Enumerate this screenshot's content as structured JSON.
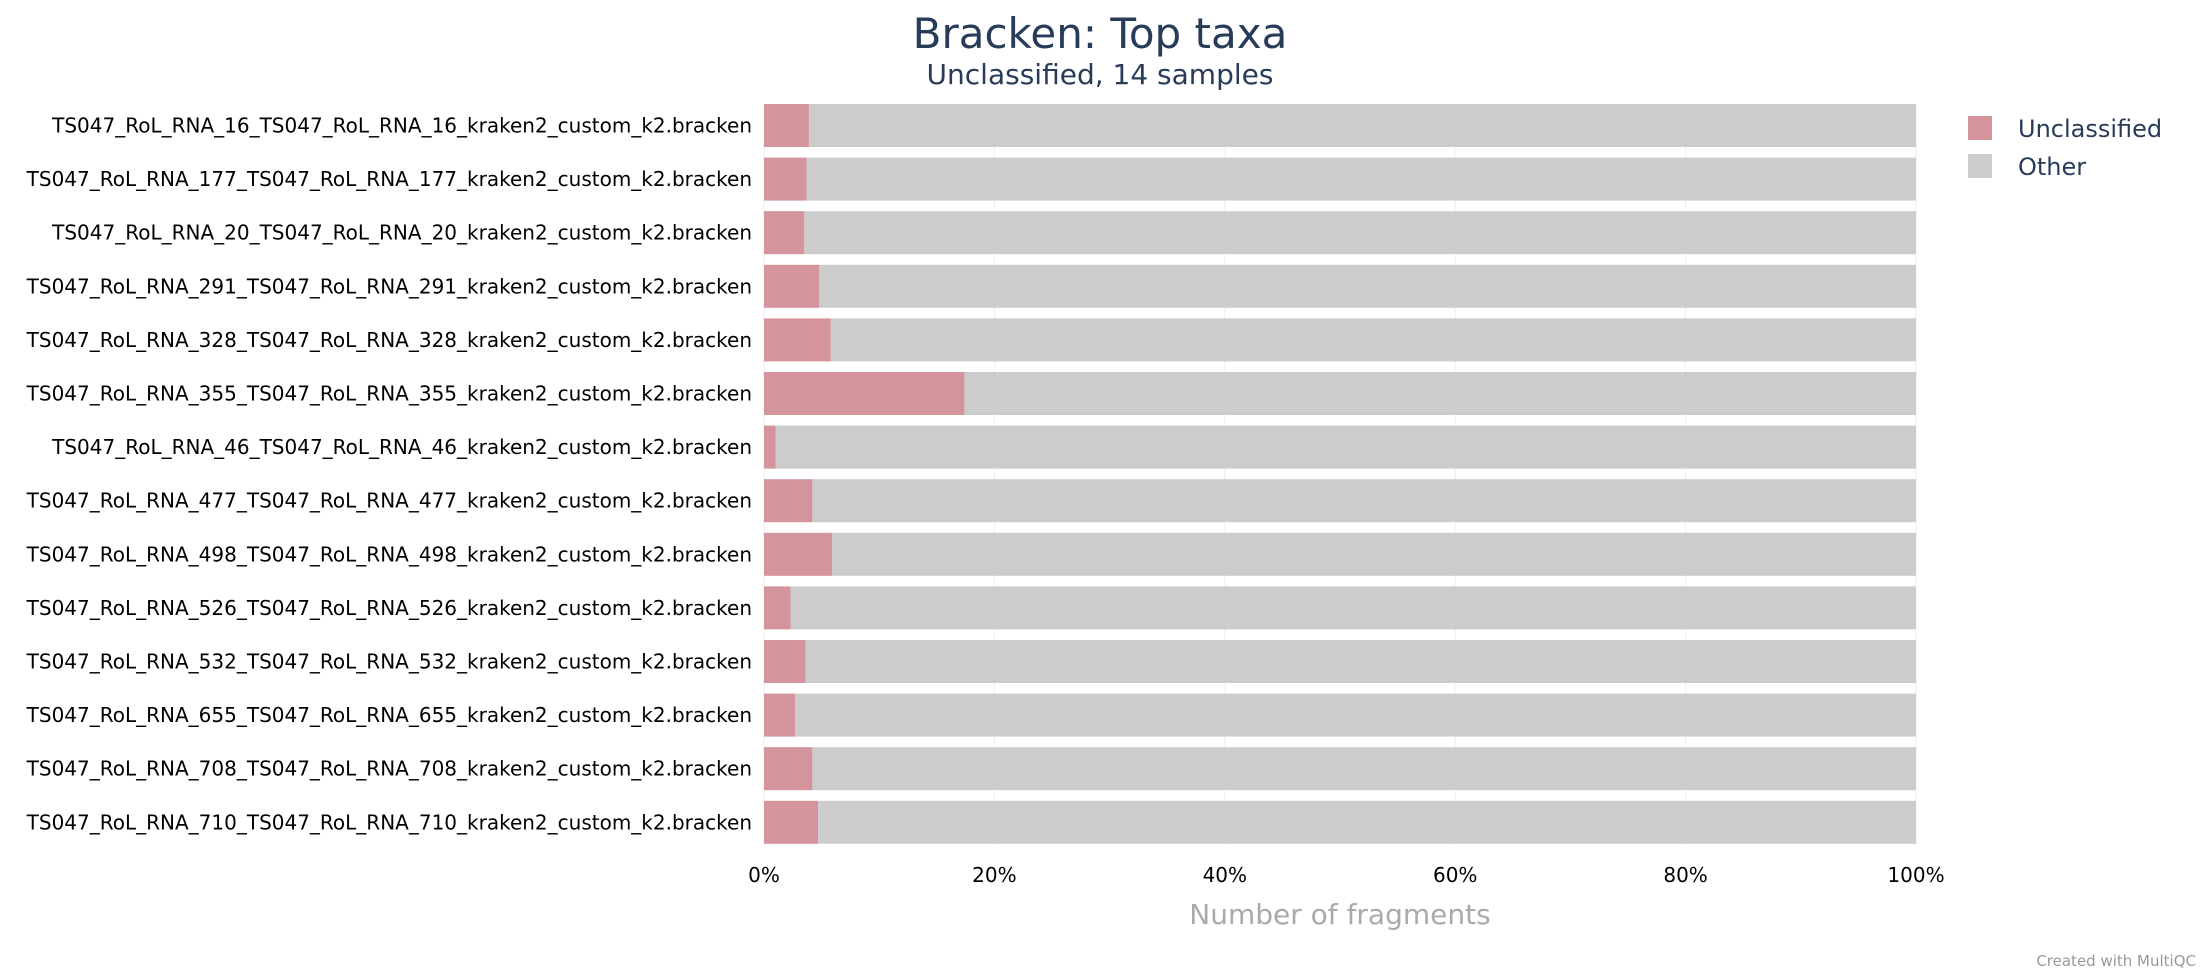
{
  "chart_data": {
    "type": "bar",
    "orientation": "horizontal",
    "stacked": true,
    "title": "Bracken: Top taxa",
    "subtitle": "Unclassified, 14 samples",
    "xlabel": "Number of fragments",
    "ylabel": "",
    "xlim": [
      0,
      100
    ],
    "x_ticks": [
      "0%",
      "20%",
      "40%",
      "60%",
      "80%",
      "100%"
    ],
    "grid": true,
    "legend_position": "top-right",
    "categories": [
      "TS047_RoL_RNA_16_TS047_RoL_RNA_16_kraken2_custom_k2.bracken",
      "TS047_RoL_RNA_177_TS047_RoL_RNA_177_kraken2_custom_k2.bracken",
      "TS047_RoL_RNA_20_TS047_RoL_RNA_20_kraken2_custom_k2.bracken",
      "TS047_RoL_RNA_291_TS047_RoL_RNA_291_kraken2_custom_k2.bracken",
      "TS047_RoL_RNA_328_TS047_RoL_RNA_328_kraken2_custom_k2.bracken",
      "TS047_RoL_RNA_355_TS047_RoL_RNA_355_kraken2_custom_k2.bracken",
      "TS047_RoL_RNA_46_TS047_RoL_RNA_46_kraken2_custom_k2.bracken",
      "TS047_RoL_RNA_477_TS047_RoL_RNA_477_kraken2_custom_k2.bracken",
      "TS047_RoL_RNA_498_TS047_RoL_RNA_498_kraken2_custom_k2.bracken",
      "TS047_RoL_RNA_526_TS047_RoL_RNA_526_kraken2_custom_k2.bracken",
      "TS047_RoL_RNA_532_TS047_RoL_RNA_532_kraken2_custom_k2.bracken",
      "TS047_RoL_RNA_655_TS047_RoL_RNA_655_kraken2_custom_k2.bracken",
      "TS047_RoL_RNA_708_TS047_RoL_RNA_708_kraken2_custom_k2.bracken",
      "TS047_RoL_RNA_710_TS047_RoL_RNA_710_kraken2_custom_k2.bracken"
    ],
    "series": [
      {
        "name": "Unclassified",
        "color": "#d4949b",
        "values": [
          3.9,
          3.7,
          3.5,
          4.8,
          5.8,
          17.4,
          1.0,
          4.2,
          5.9,
          2.3,
          3.6,
          2.7,
          4.2,
          4.7
        ]
      },
      {
        "name": "Other",
        "color": "#cccccc",
        "values": [
          96.1,
          96.3,
          96.5,
          95.2,
          94.2,
          82.6,
          99.0,
          95.8,
          94.1,
          97.7,
          96.4,
          97.3,
          95.8,
          95.3
        ]
      }
    ]
  },
  "footer": {
    "credit": "Created with MultiQC"
  }
}
